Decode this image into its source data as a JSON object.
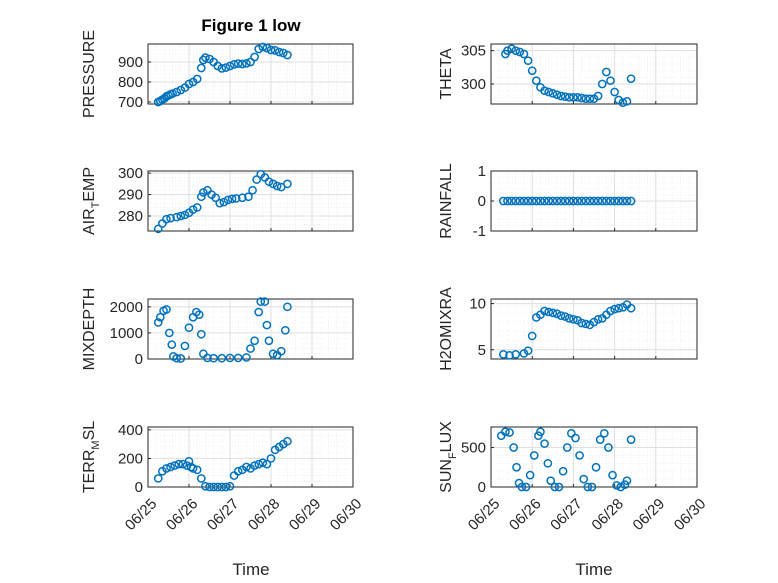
{
  "figure": {
    "title": "Figure 1 low",
    "xlabel": "Time",
    "xticklabels": [
      "06/25",
      "06/26",
      "06/27",
      "06/28",
      "06/29",
      "06/30"
    ]
  },
  "style": {
    "marker_color": "#0072BD",
    "grid_color": "#dfdfdf",
    "axis_color": "#262626"
  },
  "chart_data": [
    {
      "type": "scatter",
      "id": "pressure",
      "ylabel": {
        "main": "PRESSURE"
      },
      "ylim": [
        690,
        990
      ],
      "yticks": [
        700,
        800,
        900
      ],
      "yticklabels": [
        "700",
        "800",
        "900"
      ],
      "xlim": [
        0,
        5
      ],
      "points": [
        [
          0.25,
          700
        ],
        [
          0.3,
          705
        ],
        [
          0.35,
          712
        ],
        [
          0.4,
          718
        ],
        [
          0.45,
          728
        ],
        [
          0.5,
          733
        ],
        [
          0.55,
          738
        ],
        [
          0.6,
          742
        ],
        [
          0.7,
          750
        ],
        [
          0.8,
          760
        ],
        [
          0.9,
          772
        ],
        [
          1.0,
          790
        ],
        [
          1.1,
          800
        ],
        [
          1.2,
          815
        ],
        [
          1.3,
          870
        ],
        [
          1.35,
          910
        ],
        [
          1.4,
          922
        ],
        [
          1.5,
          915
        ],
        [
          1.6,
          900
        ],
        [
          1.7,
          880
        ],
        [
          1.8,
          868
        ],
        [
          1.9,
          872
        ],
        [
          2.0,
          880
        ],
        [
          2.1,
          888
        ],
        [
          2.2,
          892
        ],
        [
          2.3,
          890
        ],
        [
          2.4,
          893
        ],
        [
          2.5,
          900
        ],
        [
          2.6,
          925
        ],
        [
          2.7,
          965
        ],
        [
          2.8,
          975
        ],
        [
          2.9,
          970
        ],
        [
          3.0,
          960
        ],
        [
          3.1,
          958
        ],
        [
          3.2,
          950
        ],
        [
          3.3,
          945
        ],
        [
          3.4,
          935
        ]
      ]
    },
    {
      "type": "scatter",
      "id": "theta",
      "ylabel": {
        "main": "THETA"
      },
      "ylim": [
        297,
        306
      ],
      "yticks": [
        300,
        305
      ],
      "yticklabels": [
        "300",
        "305"
      ],
      "xlim": [
        0,
        5
      ],
      "points": [
        [
          0.35,
          304.5
        ],
        [
          0.4,
          305
        ],
        [
          0.5,
          305.3
        ],
        [
          0.6,
          305
        ],
        [
          0.7,
          304.8
        ],
        [
          0.8,
          304.5
        ],
        [
          0.9,
          303.5
        ],
        [
          1.0,
          302
        ],
        [
          1.1,
          300.5
        ],
        [
          1.2,
          299.5
        ],
        [
          1.3,
          299
        ],
        [
          1.4,
          298.8
        ],
        [
          1.5,
          298.6
        ],
        [
          1.6,
          298.4
        ],
        [
          1.7,
          298.2
        ],
        [
          1.8,
          298.1
        ],
        [
          1.9,
          298
        ],
        [
          2.0,
          298
        ],
        [
          2.1,
          298
        ],
        [
          2.2,
          297.9
        ],
        [
          2.3,
          297.8
        ],
        [
          2.4,
          297.8
        ],
        [
          2.5,
          297.8
        ],
        [
          2.6,
          298.2
        ],
        [
          2.7,
          300
        ],
        [
          2.8,
          301.8
        ],
        [
          2.9,
          300.5
        ],
        [
          3.0,
          298.8
        ],
        [
          3.1,
          297.6
        ],
        [
          3.2,
          297.2
        ],
        [
          3.3,
          297.4
        ],
        [
          3.4,
          300.8
        ]
      ]
    },
    {
      "type": "scatter",
      "id": "air_temp",
      "ylabel": {
        "main": "AIR",
        "sub": "T",
        "rest": "EMP"
      },
      "ylim": [
        273,
        301
      ],
      "yticks": [
        280,
        290,
        300
      ],
      "yticklabels": [
        "280",
        "290",
        "300"
      ],
      "xlim": [
        0,
        5
      ],
      "points": [
        [
          0.25,
          274
        ],
        [
          0.35,
          276.5
        ],
        [
          0.45,
          278.5
        ],
        [
          0.55,
          279
        ],
        [
          0.7,
          279.5
        ],
        [
          0.8,
          280
        ],
        [
          0.9,
          280.5
        ],
        [
          1.0,
          281.5
        ],
        [
          1.1,
          283
        ],
        [
          1.2,
          284
        ],
        [
          1.3,
          289
        ],
        [
          1.35,
          291
        ],
        [
          1.45,
          292
        ],
        [
          1.55,
          290
        ],
        [
          1.65,
          288.5
        ],
        [
          1.75,
          286
        ],
        [
          1.85,
          286.5
        ],
        [
          1.95,
          287.5
        ],
        [
          2.05,
          288
        ],
        [
          2.15,
          288.2
        ],
        [
          2.3,
          288.5
        ],
        [
          2.45,
          289
        ],
        [
          2.55,
          292
        ],
        [
          2.65,
          297
        ],
        [
          2.75,
          299.5
        ],
        [
          2.85,
          298
        ],
        [
          2.95,
          296
        ],
        [
          3.05,
          295
        ],
        [
          3.15,
          294
        ],
        [
          3.25,
          293.5
        ],
        [
          3.4,
          295
        ]
      ]
    },
    {
      "type": "scatter",
      "id": "rainfall",
      "ylabel": {
        "main": "RAINFALL"
      },
      "ylim": [
        -1,
        1
      ],
      "yticks": [
        -1,
        0,
        1
      ],
      "yticklabels": [
        "-1",
        "0",
        "1"
      ],
      "xlim": [
        0,
        5
      ],
      "points": [
        [
          0.3,
          0
        ],
        [
          0.4,
          0
        ],
        [
          0.5,
          0
        ],
        [
          0.6,
          0
        ],
        [
          0.7,
          0
        ],
        [
          0.8,
          0
        ],
        [
          0.9,
          0
        ],
        [
          1.0,
          0
        ],
        [
          1.1,
          0
        ],
        [
          1.2,
          0
        ],
        [
          1.3,
          0
        ],
        [
          1.4,
          0
        ],
        [
          1.5,
          0
        ],
        [
          1.6,
          0
        ],
        [
          1.7,
          0
        ],
        [
          1.8,
          0
        ],
        [
          1.9,
          0
        ],
        [
          2.0,
          0
        ],
        [
          2.1,
          0
        ],
        [
          2.2,
          0
        ],
        [
          2.3,
          0
        ],
        [
          2.4,
          0
        ],
        [
          2.5,
          0
        ],
        [
          2.6,
          0
        ],
        [
          2.7,
          0
        ],
        [
          2.8,
          0
        ],
        [
          2.9,
          0
        ],
        [
          3.0,
          0
        ],
        [
          3.1,
          0
        ],
        [
          3.2,
          0
        ],
        [
          3.3,
          0
        ],
        [
          3.4,
          0
        ]
      ]
    },
    {
      "type": "scatter",
      "id": "mixdepth",
      "ylabel": {
        "main": "MIXDEPTH"
      },
      "ylim": [
        0,
        2300
      ],
      "yticks": [
        0,
        1000,
        2000
      ],
      "yticklabels": [
        "0",
        "1000",
        "2000"
      ],
      "xlim": [
        0,
        5
      ],
      "points": [
        [
          0.25,
          1400
        ],
        [
          0.3,
          1600
        ],
        [
          0.38,
          1850
        ],
        [
          0.45,
          1900
        ],
        [
          0.52,
          1000
        ],
        [
          0.58,
          550
        ],
        [
          0.62,
          100
        ],
        [
          0.7,
          30
        ],
        [
          0.8,
          20
        ],
        [
          0.9,
          500
        ],
        [
          1.0,
          1200
        ],
        [
          1.1,
          1600
        ],
        [
          1.18,
          1800
        ],
        [
          1.25,
          1700
        ],
        [
          1.3,
          950
        ],
        [
          1.35,
          200
        ],
        [
          1.45,
          40
        ],
        [
          1.6,
          30
        ],
        [
          1.8,
          30
        ],
        [
          2.0,
          40
        ],
        [
          2.2,
          40
        ],
        [
          2.4,
          60
        ],
        [
          2.5,
          400
        ],
        [
          2.6,
          700
        ],
        [
          2.7,
          1800
        ],
        [
          2.75,
          2200
        ],
        [
          2.85,
          2200
        ],
        [
          2.9,
          1300
        ],
        [
          2.95,
          700
        ],
        [
          3.05,
          200
        ],
        [
          3.15,
          150
        ],
        [
          3.25,
          300
        ],
        [
          3.35,
          1100
        ],
        [
          3.4,
          2000
        ]
      ]
    },
    {
      "type": "scatter",
      "id": "h2omixra",
      "ylabel": {
        "main": "H2OMIXRA"
      },
      "ylim": [
        4,
        10.5
      ],
      "yticks": [
        5,
        10
      ],
      "yticklabels": [
        "5",
        "10"
      ],
      "xlim": [
        0,
        5
      ],
      "points": [
        [
          0.3,
          4.5
        ],
        [
          0.45,
          4.4
        ],
        [
          0.6,
          4.5
        ],
        [
          0.8,
          4.6
        ],
        [
          0.9,
          4.9
        ],
        [
          1.0,
          6.5
        ],
        [
          1.1,
          8.5
        ],
        [
          1.2,
          8.8
        ],
        [
          1.3,
          9.2
        ],
        [
          1.4,
          9.1
        ],
        [
          1.5,
          9
        ],
        [
          1.6,
          8.9
        ],
        [
          1.7,
          8.7
        ],
        [
          1.8,
          8.6
        ],
        [
          1.9,
          8.4
        ],
        [
          2.0,
          8.3
        ],
        [
          2.1,
          8.2
        ],
        [
          2.2,
          7.9
        ],
        [
          2.3,
          7.8
        ],
        [
          2.4,
          7.7
        ],
        [
          2.5,
          8
        ],
        [
          2.6,
          8.3
        ],
        [
          2.7,
          8.4
        ],
        [
          2.8,
          8.8
        ],
        [
          2.9,
          9.2
        ],
        [
          3.0,
          9.4
        ],
        [
          3.1,
          9.5
        ],
        [
          3.2,
          9.6
        ],
        [
          3.3,
          9.9
        ],
        [
          3.4,
          9.5
        ]
      ]
    },
    {
      "type": "scatter",
      "id": "terrmsl",
      "ylabel": {
        "main": "TERR",
        "sub": "M",
        "rest": "SL"
      },
      "ylim": [
        0,
        420
      ],
      "yticks": [
        0,
        200,
        400
      ],
      "yticklabels": [
        "0",
        "200",
        "400"
      ],
      "xlim": [
        0,
        5
      ],
      "points": [
        [
          0.25,
          60
        ],
        [
          0.35,
          110
        ],
        [
          0.45,
          130
        ],
        [
          0.55,
          140
        ],
        [
          0.65,
          150
        ],
        [
          0.75,
          160
        ],
        [
          0.85,
          160
        ],
        [
          0.95,
          150
        ],
        [
          1.0,
          180
        ],
        [
          1.05,
          140
        ],
        [
          1.1,
          130
        ],
        [
          1.2,
          120
        ],
        [
          1.3,
          60
        ],
        [
          1.4,
          5
        ],
        [
          1.5,
          0
        ],
        [
          1.6,
          0
        ],
        [
          1.7,
          0
        ],
        [
          1.8,
          0
        ],
        [
          1.9,
          0
        ],
        [
          2.0,
          5
        ],
        [
          2.1,
          80
        ],
        [
          2.2,
          110
        ],
        [
          2.3,
          120
        ],
        [
          2.4,
          140
        ],
        [
          2.5,
          130
        ],
        [
          2.6,
          150
        ],
        [
          2.7,
          160
        ],
        [
          2.8,
          170
        ],
        [
          2.9,
          160
        ],
        [
          3.0,
          200
        ],
        [
          3.1,
          260
        ],
        [
          3.2,
          280
        ],
        [
          3.3,
          300
        ],
        [
          3.4,
          320
        ]
      ]
    },
    {
      "type": "scatter",
      "id": "sunflux",
      "ylabel": {
        "main": "SUN",
        "sub": "F",
        "rest": "LUX"
      },
      "ylim": [
        0,
        760
      ],
      "yticks": [
        0,
        500
      ],
      "yticklabels": [
        "0",
        "500"
      ],
      "xlim": [
        0,
        5
      ],
      "points": [
        [
          0.25,
          650
        ],
        [
          0.35,
          700
        ],
        [
          0.45,
          690
        ],
        [
          0.55,
          500
        ],
        [
          0.62,
          250
        ],
        [
          0.68,
          50
        ],
        [
          0.75,
          0
        ],
        [
          0.85,
          0
        ],
        [
          0.95,
          150
        ],
        [
          1.05,
          400
        ],
        [
          1.15,
          650
        ],
        [
          1.2,
          700
        ],
        [
          1.3,
          550
        ],
        [
          1.38,
          300
        ],
        [
          1.45,
          80
        ],
        [
          1.55,
          0
        ],
        [
          1.65,
          0
        ],
        [
          1.75,
          200
        ],
        [
          1.85,
          500
        ],
        [
          1.95,
          680
        ],
        [
          2.05,
          620
        ],
        [
          2.15,
          400
        ],
        [
          2.25,
          100
        ],
        [
          2.35,
          0
        ],
        [
          2.45,
          0
        ],
        [
          2.55,
          250
        ],
        [
          2.65,
          600
        ],
        [
          2.75,
          680
        ],
        [
          2.85,
          500
        ],
        [
          2.95,
          150
        ],
        [
          3.05,
          20
        ],
        [
          3.15,
          0
        ],
        [
          3.25,
          30
        ],
        [
          3.3,
          80
        ],
        [
          3.4,
          600
        ]
      ]
    }
  ]
}
